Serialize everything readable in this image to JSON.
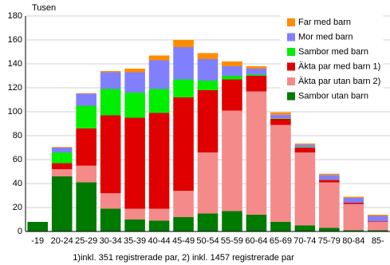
{
  "chart_data": {
    "type": "stacked_bar",
    "title": "Tusen",
    "footnote": "1)inkl. 351 registrerade par, 2) inkl. 1457 registrerade par",
    "categories": [
      "-19",
      "20-24",
      "25-29",
      "30-34",
      "35-39",
      "40-44",
      "45-49",
      "50-54",
      "55-59",
      "60-64",
      "65-69",
      "70-74",
      "75-79",
      "80-84",
      "85-"
    ],
    "series": [
      {
        "name": "Sambor utan barn",
        "color": "#007a00",
        "values": [
          8,
          46,
          41,
          19,
          10,
          9,
          12,
          15,
          17,
          14,
          8,
          5,
          3,
          1,
          1
        ]
      },
      {
        "name": "Äkta par utan barn 2)",
        "color": "#f48a8a",
        "values": [
          0,
          6,
          14,
          13,
          9,
          10,
          22,
          51,
          84,
          103,
          81,
          61,
          38,
          22,
          7
        ]
      },
      {
        "name": "Äkta par med barn 1)",
        "color": "#e00000",
        "values": [
          0,
          5,
          31,
          65,
          76,
          80,
          78,
          52,
          26,
          13,
          5,
          4,
          2,
          1,
          0.5
        ]
      },
      {
        "name": "Sambor med barn",
        "color": "#00ee00",
        "values": [
          0,
          9,
          19,
          22,
          21,
          20,
          15,
          8,
          3,
          1,
          0.5,
          0.5,
          0.2,
          0,
          0
        ]
      },
      {
        "name": "Mor med barn",
        "color": "#8080ff",
        "values": [
          0,
          4,
          10,
          14,
          17,
          24,
          27,
          18,
          8,
          5,
          3,
          2,
          4,
          4,
          4.5
        ]
      },
      {
        "name": "Far med barn",
        "color": "#ff8c00",
        "values": [
          0,
          0.5,
          0.5,
          1,
          3,
          4,
          6,
          5,
          4,
          2,
          2,
          1,
          1,
          1,
          1
        ]
      }
    ],
    "ylim": [
      0,
      180
    ],
    "yticks": [
      0,
      20,
      40,
      60,
      80,
      100,
      120,
      140,
      160,
      180
    ],
    "grid": true,
    "legend": "top-right"
  }
}
